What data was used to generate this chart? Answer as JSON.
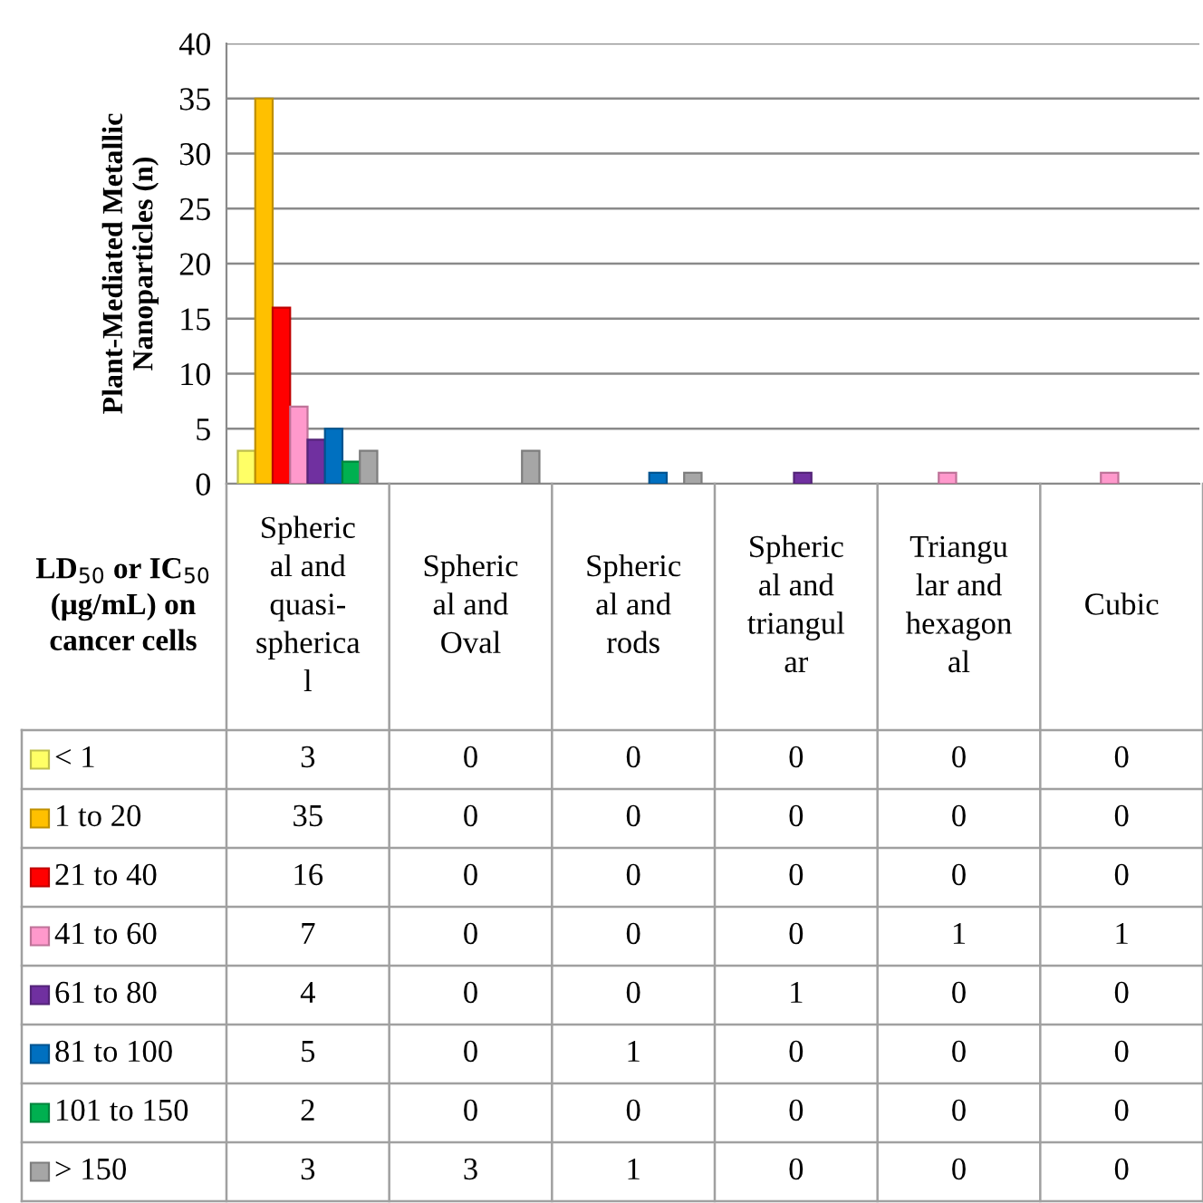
{
  "chart_data": {
    "type": "bar",
    "ylabel": "Plant-Mediated Metallic\nNanoparticles (n)",
    "legend_title": "LD$_{50}$ or IC$_{50}$\n(μg/mL) on\ncancer cells",
    "categories": [
      "Spheric\nal and\nquasi-\nspherica\nl",
      "Spheric\nal and\nOval",
      "Spheric\nal and\nrods",
      "Spheric\nal and\ntriangul\nar",
      "Triangu\nlar and\nhexagon\nal",
      "Cubic"
    ],
    "series": [
      {
        "name": "< 1",
        "color": "#ffff66",
        "values": [
          3,
          0,
          0,
          0,
          0,
          0
        ]
      },
      {
        "name": "1 to 20",
        "color": "#ffc000",
        "values": [
          35,
          0,
          0,
          0,
          0,
          0
        ]
      },
      {
        "name": "21 to 40",
        "color": "#ff0000",
        "values": [
          16,
          0,
          0,
          0,
          0,
          0
        ]
      },
      {
        "name": "41 to 60",
        "color": "#ff99cc",
        "values": [
          7,
          0,
          0,
          0,
          1,
          1
        ]
      },
      {
        "name": "61 to 80",
        "color": "#7030a0",
        "values": [
          4,
          0,
          0,
          1,
          0,
          0
        ]
      },
      {
        "name": "81 to 100",
        "color": "#0070c0",
        "values": [
          5,
          0,
          1,
          0,
          0,
          0
        ]
      },
      {
        "name": "101 to 150",
        "color": "#00b050",
        "values": [
          2,
          0,
          0,
          0,
          0,
          0
        ]
      },
      {
        "name": "> 150",
        "color": "#a6a6a6",
        "values": [
          3,
          3,
          1,
          0,
          0,
          0
        ]
      }
    ],
    "ylim": [
      0,
      40
    ],
    "yticks": [
      0,
      5,
      10,
      15,
      20,
      25,
      30,
      35,
      40
    ],
    "grid": "y",
    "legend": "bottom",
    "data_labels": true
  }
}
